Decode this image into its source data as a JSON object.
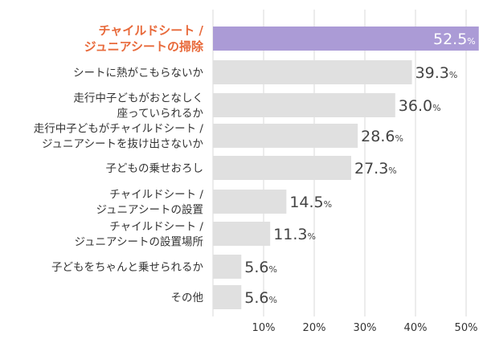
{
  "chart_data": {
    "type": "bar",
    "orientation": "horizontal",
    "categories": [
      [
        "チャイルドシート /",
        "ジュニアシートの掃除"
      ],
      [
        "シートに熱がこもらないか"
      ],
      [
        "走行中子どもがおとなしく",
        "座っていられるか"
      ],
      [
        "走行中子どもがチャイルドシート /",
        "ジュニアシートを抜け出さないか"
      ],
      [
        "子どもの乗せおろし"
      ],
      [
        "チャイルドシート /",
        "ジュニアシートの設置"
      ],
      [
        "チャイルドシート /",
        "ジュニアシートの設置場所"
      ],
      [
        "子どもをちゃんと乗せられるか"
      ],
      [
        "その他"
      ]
    ],
    "values": [
      52.5,
      39.3,
      36.0,
      28.6,
      27.3,
      14.5,
      11.3,
      5.6,
      5.6
    ],
    "value_labels": [
      "52.5",
      "39.3",
      "36.0",
      "28.6",
      "27.3",
      "14.5",
      "11.3",
      "5.6",
      "5.6"
    ],
    "value_unit": "%",
    "highlight_index": 0,
    "xlim": [
      0,
      53
    ],
    "xticks": [
      {
        "value": 10,
        "label": "10%"
      },
      {
        "value": 20,
        "label": "20%"
      },
      {
        "value": 30,
        "label": "30%"
      },
      {
        "value": 40,
        "label": "40%"
      },
      {
        "value": 50,
        "label": "50%"
      }
    ],
    "grid": true,
    "colors": {
      "bar": "#e0e0e0",
      "highlight_bar": "#ab9bd6",
      "highlight_label": "#e8693a",
      "label": "#333333",
      "value_text": "#444444",
      "highlight_value_text": "#ffffff",
      "grid": "#d9d9d9"
    }
  }
}
